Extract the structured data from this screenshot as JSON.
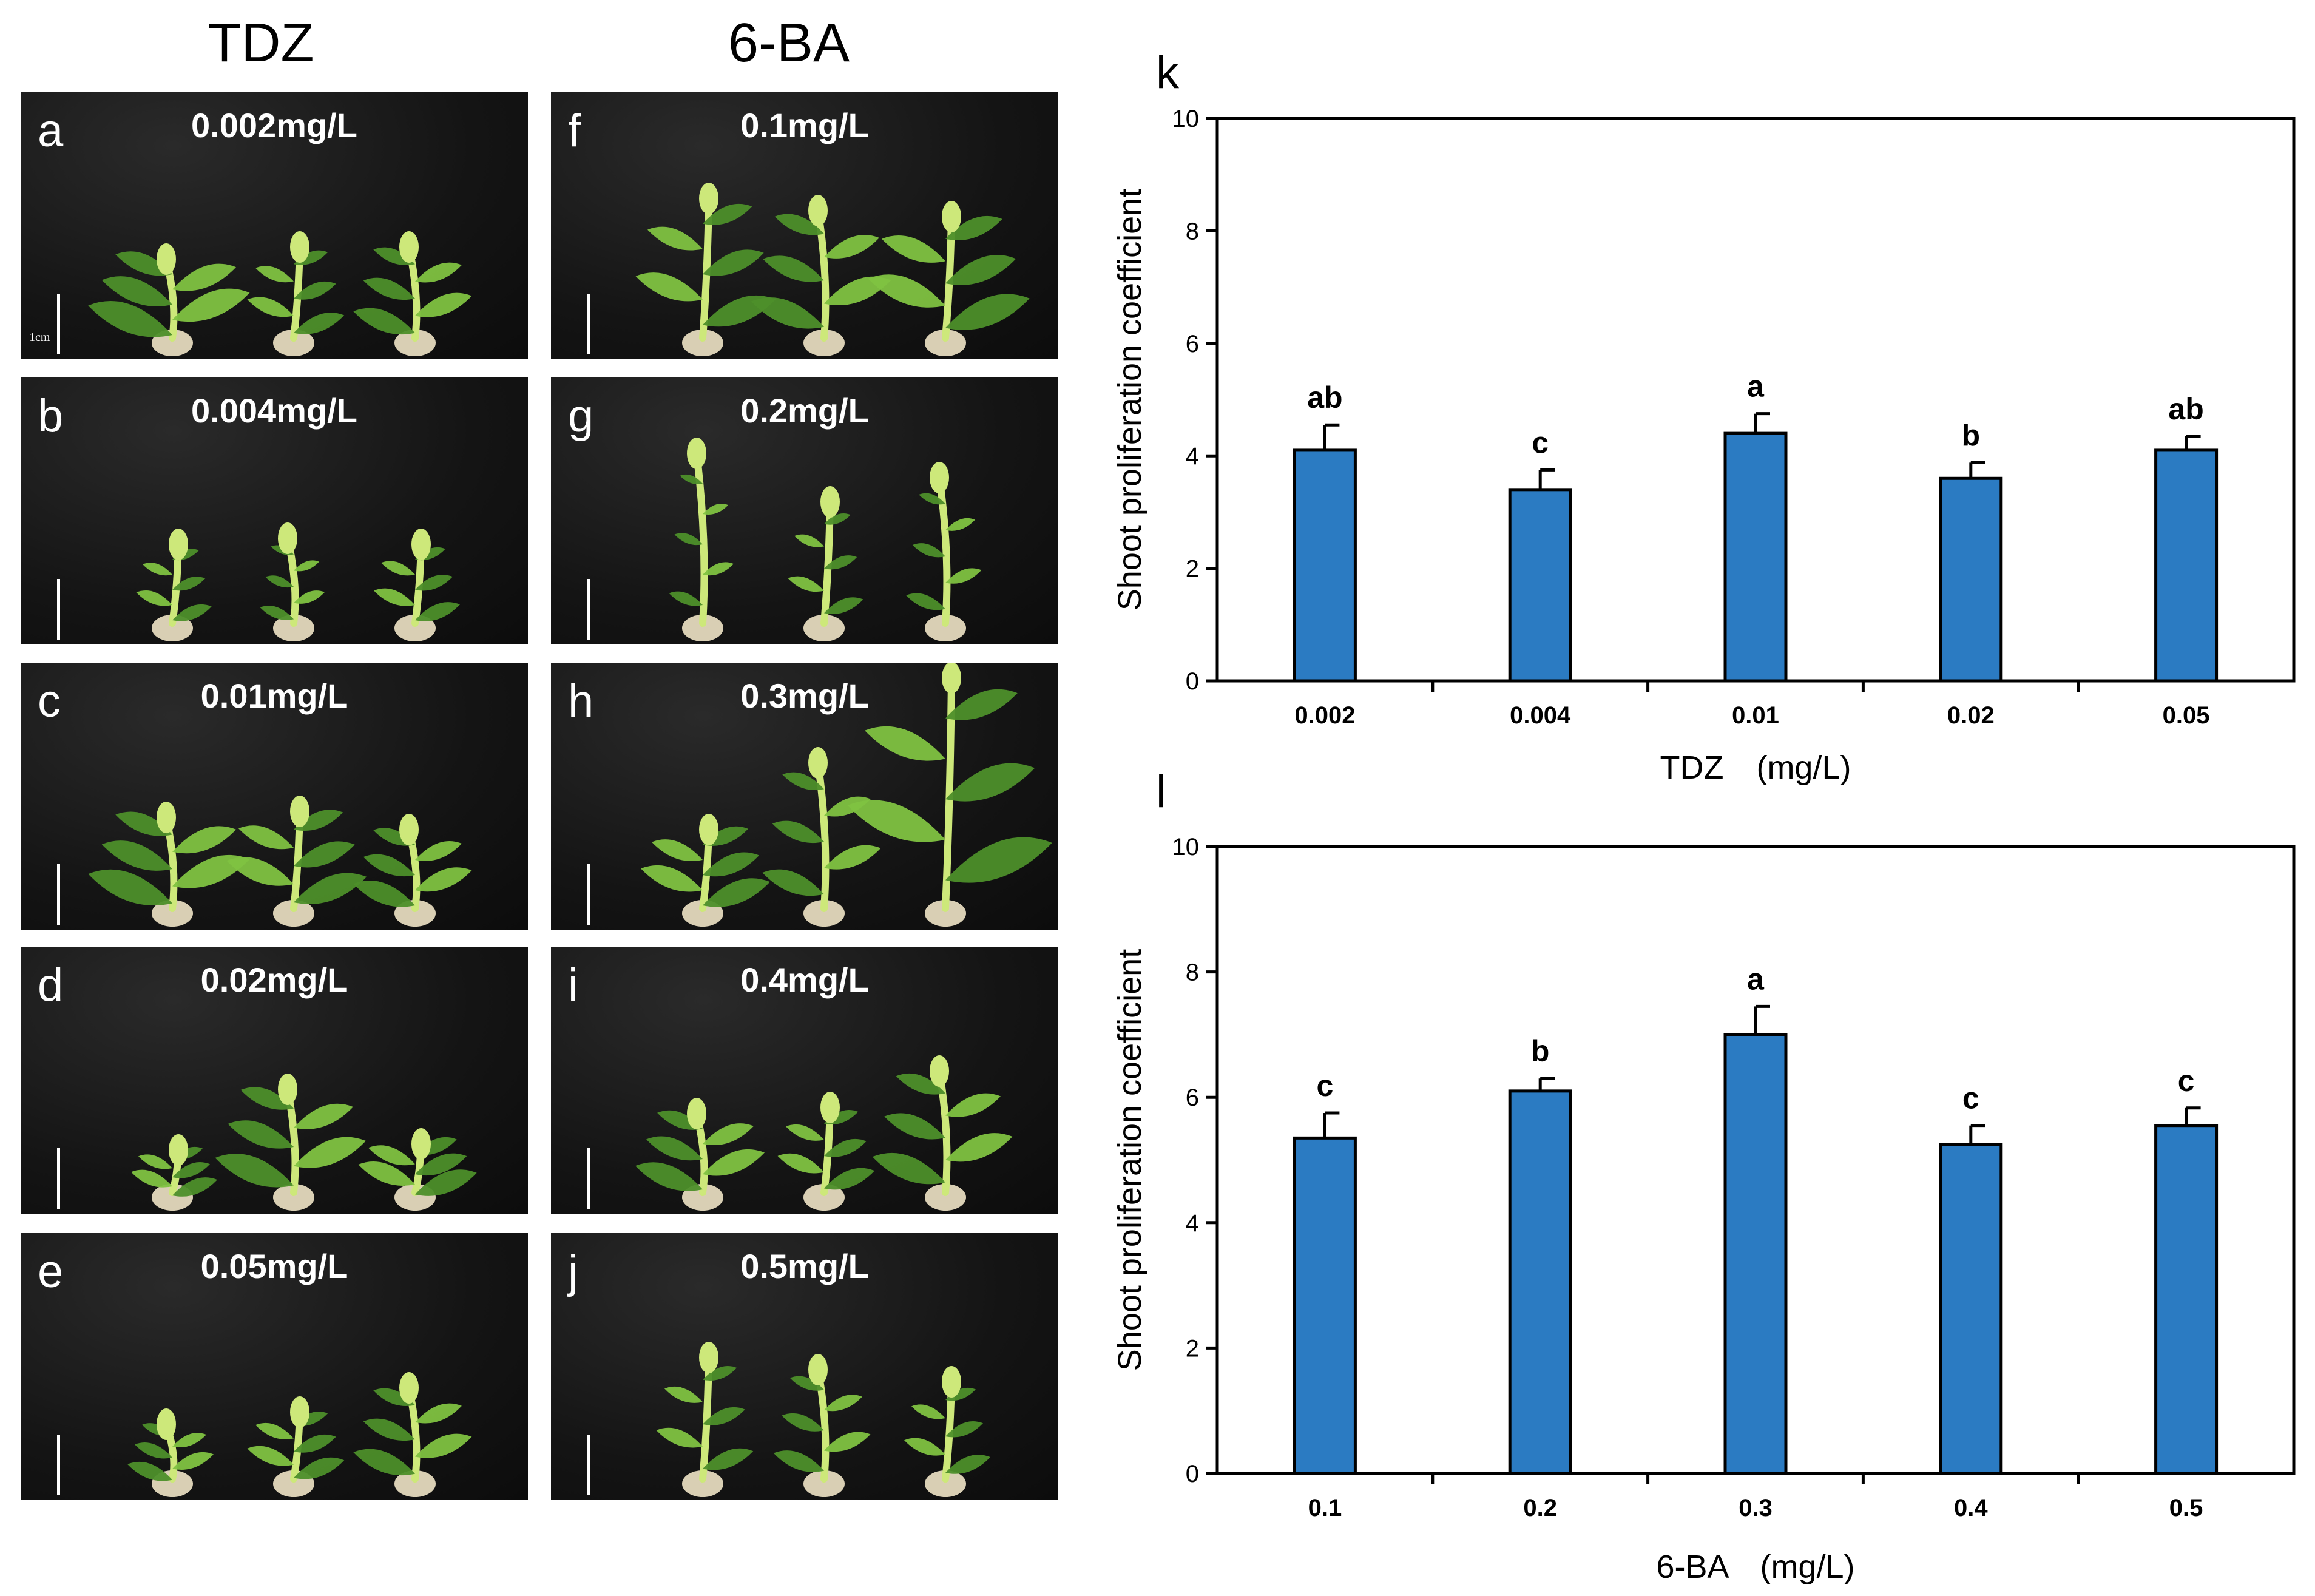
{
  "columns": [
    {
      "heading": "TDZ"
    },
    {
      "heading": "6-BA"
    }
  ],
  "scale_label": "1cm",
  "photos": [
    {
      "letter": "a",
      "concentration": "0.002mg/L",
      "col": 0,
      "row": 0
    },
    {
      "letter": "b",
      "concentration": "0.004mg/L",
      "col": 0,
      "row": 1
    },
    {
      "letter": "c",
      "concentration": "0.01mg/L",
      "col": 0,
      "row": 2
    },
    {
      "letter": "d",
      "concentration": "0.02mg/L",
      "col": 0,
      "row": 3
    },
    {
      "letter": "e",
      "concentration": "0.05mg/L",
      "col": 0,
      "row": 4
    },
    {
      "letter": "f",
      "concentration": "0.1mg/L",
      "col": 1,
      "row": 0
    },
    {
      "letter": "g",
      "concentration": "0.2mg/L",
      "col": 1,
      "row": 1
    },
    {
      "letter": "h",
      "concentration": "0.3mg/L",
      "col": 1,
      "row": 2
    },
    {
      "letter": "i",
      "concentration": "0.4mg/L",
      "col": 1,
      "row": 3
    },
    {
      "letter": "j",
      "concentration": "0.5mg/L",
      "col": 1,
      "row": 4
    }
  ],
  "colors": {
    "bar": "#2b7bc2",
    "plant": "#7fc241",
    "plant_light": "#cde87a",
    "plant_dark": "#4d8f2a",
    "callus": "#d9cfb4"
  },
  "chart_data": [
    {
      "panel": "k",
      "type": "bar",
      "categories": [
        "0.002",
        "0.004",
        "0.01",
        "0.02",
        "0.05"
      ],
      "values": [
        4.1,
        3.4,
        4.4,
        3.6,
        4.1
      ],
      "errors": [
        0.45,
        0.35,
        0.35,
        0.28,
        0.25
      ],
      "significance": [
        "ab",
        "c",
        "a",
        "b",
        "ab"
      ],
      "xlabel": "TDZ　(mg/L)",
      "ylabel": "Shoot proliferation coefficient",
      "ylim": [
        0,
        10
      ],
      "yticks": [
        0,
        2,
        4,
        6,
        8,
        10
      ],
      "grid": false
    },
    {
      "panel": "l",
      "type": "bar",
      "categories": [
        "0.1",
        "0.2",
        "0.3",
        "0.4",
        "0.5"
      ],
      "values": [
        5.35,
        6.1,
        7.0,
        5.25,
        5.55
      ],
      "errors": [
        0.4,
        0.2,
        0.45,
        0.3,
        0.28
      ],
      "significance": [
        "c",
        "b",
        "a",
        "c",
        "c"
      ],
      "xlabel": "6-BA　(mg/L)",
      "ylabel": "Shoot proliferation coefficient",
      "ylim": [
        0,
        10
      ],
      "yticks": [
        0,
        2,
        4,
        6,
        8,
        10
      ],
      "grid": false
    }
  ]
}
